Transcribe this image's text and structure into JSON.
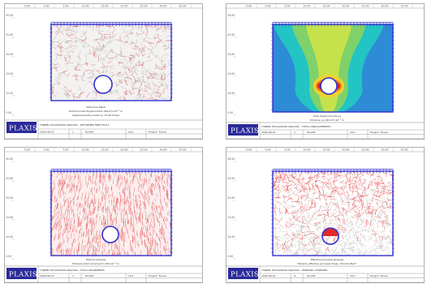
{
  "app": {
    "logo": "PLAXIS"
  },
  "panels": [
    {
      "id": "deformed-mesh",
      "view": "mesh",
      "caption_title": "Deformed Mesh",
      "caption_lines": [
        "Extreme total displacement 184.67×10⁻³ m",
        "(displacements scaled up 10.00 times)"
      ],
      "footer_title": "TUNNEL EXCAVATION ANALYSIS - DEFORMED MESH PLOT",
      "footer_cells": [
        "2009-06-01",
        "1",
        "PLAXIS",
        "v8.2",
        "Project: Tunnel"
      ]
    },
    {
      "id": "total-displacements",
      "view": "contour",
      "caption_title": "Total displacements |u|",
      "caption_lines": [
        "Extreme |u| 184.67×10⁻³ m"
      ],
      "footer_title": "TUNNEL EXCAVATION ANALYSIS - TOTAL DISPLACEMENTS",
      "footer_cells": [
        "2009-06-01",
        "2",
        "PLAXIS",
        "v8.2",
        "Project: Tunnel"
      ]
    },
    {
      "id": "total-increments",
      "view": "vectors",
      "caption_title": "Total increments",
      "caption_lines": [
        "Extreme total increment 1.95×10⁻³ m"
      ],
      "footer_title": "TUNNEL EXCAVATION ANALYSIS - TOTAL INCREMENTS",
      "footer_cells": [
        "2009-06-01",
        "3",
        "PLAXIS",
        "v8.2",
        "Project: Tunnel"
      ]
    },
    {
      "id": "principal-stresses",
      "view": "stress",
      "caption_title": "Effective principal stresses",
      "caption_lines": [
        "Extreme effective principal stress -310.24 kN/m²"
      ],
      "footer_title": "TUNNEL EXCAVATION ANALYSIS - PRINCIPAL STRESSES",
      "footer_cells": [
        "2009-06-01",
        "4",
        "PLAXIS",
        "v8.2",
        "Project: Tunnel"
      ]
    }
  ],
  "axes": {
    "x_ticks": [
      "-5.00",
      "0.00",
      "5.00",
      "10.00",
      "15.00",
      "20.00",
      "25.00",
      "30.00",
      "35.00"
    ],
    "y_ticks": [
      "30.00",
      "25.00",
      "20.00",
      "15.00",
      "10.00",
      "5.00"
    ]
  },
  "colors": {
    "model_border": "#3030cc",
    "tunnel_fill": "#ffffff",
    "mesh": "#b0a8a8",
    "mesh_red": "#d23030",
    "vector_red": "#e04040",
    "logo_bg": "#2a2a9a",
    "contour": [
      "#2e8bd6",
      "#22c4c4",
      "#7fd26a",
      "#c6e24a",
      "#f2d22e",
      "#f07a1a",
      "#d8221c"
    ]
  }
}
